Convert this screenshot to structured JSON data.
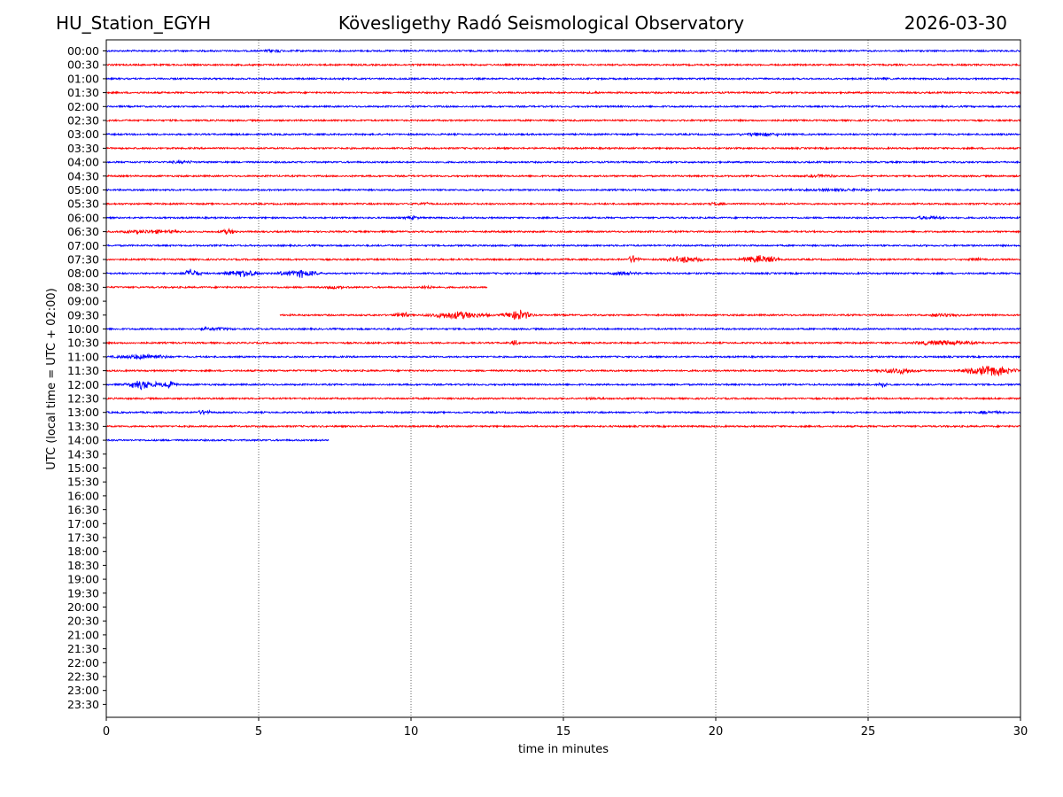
{
  "header": {
    "station": "HU_Station_EGYH",
    "observatory": "Kövesligethy Radó Seismological Observatory",
    "date": "2026-03-30"
  },
  "colors": {
    "odd": "#0000ff",
    "even": "#ff0000",
    "axis": "#000000",
    "grid": "#000000"
  },
  "chart_data": {
    "type": "line",
    "title": "Kövesligethy Radó Seismological Observatory",
    "xlabel": "time in minutes",
    "ylabel": "UTC (local time = UTC + 02:00)",
    "xlim": [
      0,
      30
    ],
    "x_ticks": [
      0,
      5,
      10,
      15,
      20,
      25,
      30
    ],
    "x_tick_labels": [
      "0",
      "5",
      "10",
      "15",
      "20",
      "25",
      "30"
    ],
    "grid": "vertical dotted at 5-minute ticks",
    "row_labels": [
      "00:00",
      "00:30",
      "01:00",
      "01:30",
      "02:00",
      "02:30",
      "03:00",
      "03:30",
      "04:00",
      "04:30",
      "05:00",
      "05:30",
      "06:00",
      "06:30",
      "07:00",
      "07:30",
      "08:00",
      "08:30",
      "09:00",
      "09:30",
      "10:00",
      "10:30",
      "11:00",
      "11:30",
      "12:00",
      "12:30",
      "13:00",
      "13:30",
      "14:00",
      "14:30",
      "15:00",
      "15:30",
      "16:00",
      "16:30",
      "17:00",
      "17:30",
      "18:00",
      "18:30",
      "19:00",
      "19:30",
      "20:00",
      "20:30",
      "21:00",
      "21:30",
      "22:00",
      "22:30",
      "23:00",
      "23:30"
    ],
    "series": [
      {
        "name": "00:00",
        "color": "blue",
        "start": 0,
        "end": 30,
        "bursts": [
          [
            5.5,
            0.5,
            3
          ]
        ]
      },
      {
        "name": "00:30",
        "color": "red",
        "start": 0,
        "end": 30,
        "bursts": []
      },
      {
        "name": "01:00",
        "color": "blue",
        "start": 0,
        "end": 30,
        "bursts": [
          [
            25.5,
            0.5,
            2
          ]
        ]
      },
      {
        "name": "01:30",
        "color": "red",
        "start": 0,
        "end": 30,
        "bursts": [
          [
            16,
            0.5,
            2
          ]
        ]
      },
      {
        "name": "02:00",
        "color": "blue",
        "start": 0,
        "end": 30,
        "bursts": []
      },
      {
        "name": "02:30",
        "color": "red",
        "start": 0,
        "end": 30,
        "bursts": []
      },
      {
        "name": "03:00",
        "color": "blue",
        "start": 0,
        "end": 30,
        "bursts": [
          [
            21.5,
            1.5,
            3
          ]
        ]
      },
      {
        "name": "03:30",
        "color": "red",
        "start": 0,
        "end": 30,
        "bursts": []
      },
      {
        "name": "04:00",
        "color": "blue",
        "start": 0,
        "end": 30,
        "bursts": [
          [
            2.5,
            1.5,
            2
          ]
        ]
      },
      {
        "name": "04:30",
        "color": "red",
        "start": 0,
        "end": 30,
        "bursts": [
          [
            23.5,
            1,
            2.5
          ]
        ]
      },
      {
        "name": "05:00",
        "color": "blue",
        "start": 0,
        "end": 30,
        "bursts": [
          [
            24,
            4,
            2
          ]
        ]
      },
      {
        "name": "05:30",
        "color": "red",
        "start": 0,
        "end": 30,
        "bursts": [
          [
            10.5,
            0.5,
            2.5
          ],
          [
            20,
            0.5,
            2.5
          ]
        ]
      },
      {
        "name": "06:00",
        "color": "blue",
        "start": 0,
        "end": 30,
        "bursts": [
          [
            10,
            0.5,
            3
          ],
          [
            27,
            1,
            3
          ]
        ]
      },
      {
        "name": "06:30",
        "color": "red",
        "start": 0,
        "end": 30,
        "bursts": [
          [
            1.5,
            2,
            3
          ],
          [
            4,
            0.5,
            4
          ]
        ]
      },
      {
        "name": "07:00",
        "color": "blue",
        "start": 0,
        "end": 30,
        "bursts": []
      },
      {
        "name": "07:30",
        "color": "red",
        "start": 0,
        "end": 30,
        "bursts": [
          [
            17.3,
            0.3,
            6
          ],
          [
            19,
            1,
            5
          ],
          [
            21.5,
            1,
            6
          ],
          [
            28.5,
            0.5,
            3
          ]
        ]
      },
      {
        "name": "08:00",
        "color": "blue",
        "start": 0,
        "end": 30,
        "bursts": [
          [
            2.8,
            0.5,
            6
          ],
          [
            4.5,
            1,
            5
          ],
          [
            6.3,
            1,
            6
          ],
          [
            17,
            1,
            3
          ]
        ]
      },
      {
        "name": "08:30",
        "color": "red",
        "start": 0,
        "end": 12.5,
        "bursts": [
          [
            7.5,
            0.5,
            3
          ],
          [
            10.5,
            0.5,
            3
          ]
        ]
      },
      {
        "name": "09:00",
        "color": "blue",
        "start": 0,
        "end": 0,
        "bursts": []
      },
      {
        "name": "09:30",
        "color": "red",
        "start": 5.7,
        "end": 30,
        "bursts": [
          [
            9.7,
            0.3,
            6
          ],
          [
            11.5,
            1.5,
            6
          ],
          [
            13.5,
            0.7,
            8
          ],
          [
            27.5,
            1,
            3
          ]
        ]
      },
      {
        "name": "10:00",
        "color": "blue",
        "start": 0,
        "end": 30,
        "bursts": [
          [
            3.5,
            1.5,
            2.5
          ]
        ]
      },
      {
        "name": "10:30",
        "color": "red",
        "start": 0,
        "end": 30,
        "bursts": [
          [
            13.4,
            0.3,
            4
          ],
          [
            27.5,
            2,
            3.5
          ]
        ]
      },
      {
        "name": "11:00",
        "color": "blue",
        "start": 0,
        "end": 30,
        "bursts": [
          [
            1.2,
            1.5,
            4
          ]
        ]
      },
      {
        "name": "11:30",
        "color": "red",
        "start": 0,
        "end": 30,
        "bursts": [
          [
            26,
            1,
            5
          ],
          [
            29,
            1.2,
            8
          ]
        ]
      },
      {
        "name": "12:00",
        "color": "blue",
        "start": 0,
        "end": 30,
        "bursts": [
          [
            1.2,
            0.8,
            7
          ],
          [
            2,
            0.5,
            5
          ],
          [
            25.5,
            0.3,
            4
          ]
        ]
      },
      {
        "name": "12:30",
        "color": "red",
        "start": 0,
        "end": 30,
        "bursts": [
          [
            16,
            1,
            2
          ]
        ]
      },
      {
        "name": "13:00",
        "color": "blue",
        "start": 0,
        "end": 30,
        "bursts": [
          [
            3.2,
            0.5,
            3.5
          ],
          [
            29,
            1,
            2.5
          ]
        ]
      },
      {
        "name": "13:30",
        "color": "red",
        "start": 0,
        "end": 30,
        "bursts": []
      },
      {
        "name": "14:00",
        "color": "blue",
        "start": 0,
        "end": 7.3,
        "bursts": []
      }
    ]
  }
}
